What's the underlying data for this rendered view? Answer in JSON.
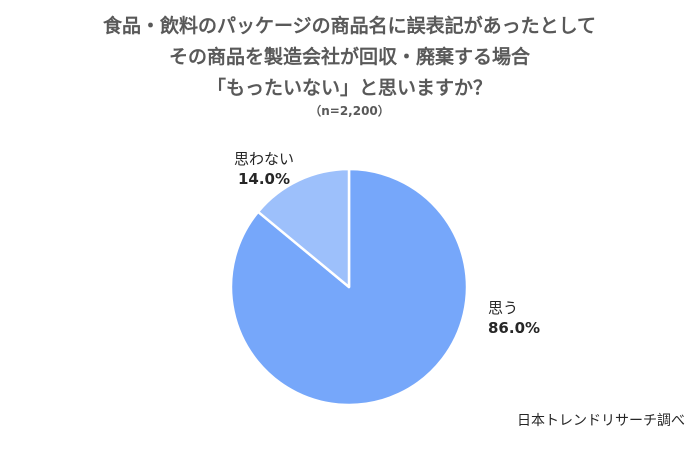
{
  "chart_data": {
    "type": "pie",
    "title_lines": [
      "食品・飲料のパッケージの商品名に誤表記があったとして",
      "その商品を製造会社が回収・廃棄する場合",
      "「もったいない」と思いますか？"
    ],
    "subtitle": "（n=2,200）",
    "slices": [
      {
        "label": "思う",
        "value": 86.0,
        "value_label": "86.0%",
        "color": "#76A7FA"
      },
      {
        "label": "思わない",
        "value": 14.0,
        "value_label": "14.0%",
        "color": "#9DC0FB"
      }
    ],
    "slice_border_color": "#ffffff"
  },
  "source": "日本トレンドリサーチ調べ"
}
